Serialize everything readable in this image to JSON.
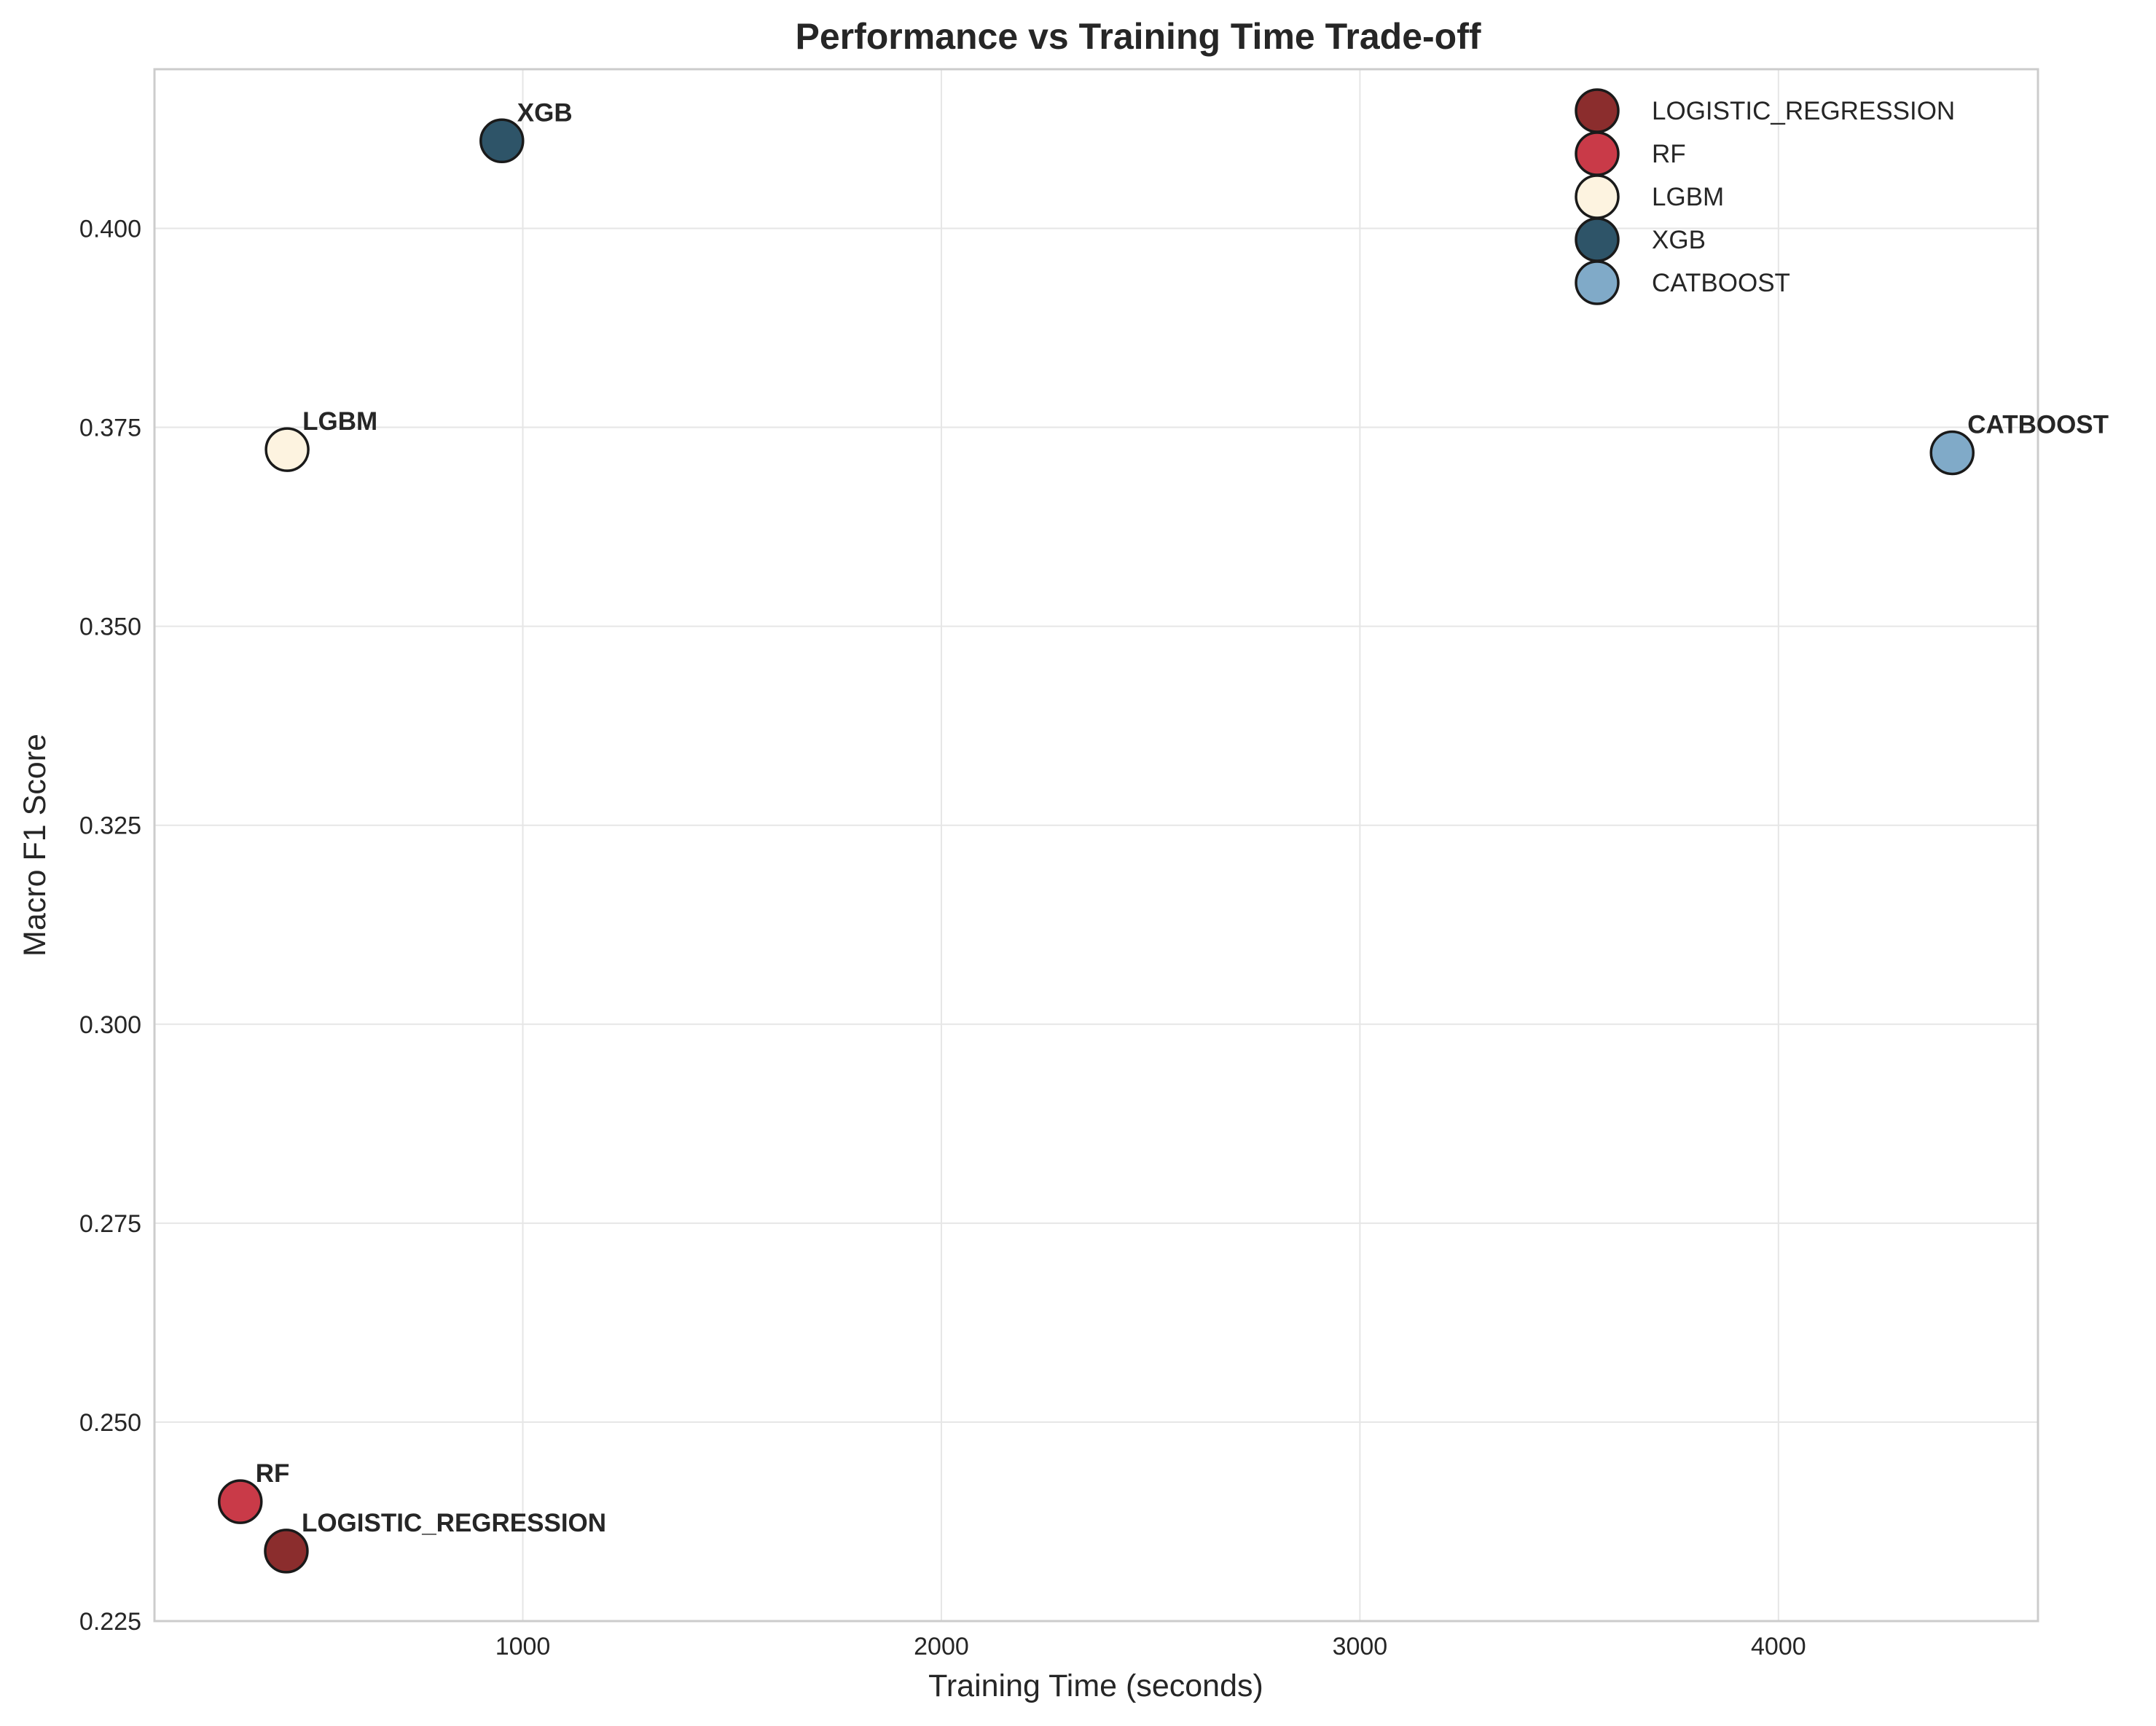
{
  "chart_data": {
    "type": "scatter",
    "title": "Performance vs Training Time Trade-off",
    "xlabel": "Training Time (seconds)",
    "ylabel": "Macro F1 Score",
    "xlim": [
      120,
      4620
    ],
    "ylim": [
      0.225,
      0.42
    ],
    "xticks": [
      1000,
      2000,
      3000,
      4000
    ],
    "yticks": [
      0.225,
      0.25,
      0.275,
      0.3,
      0.325,
      0.35,
      0.375,
      0.4
    ],
    "ytick_labels": [
      "0.225",
      "0.250",
      "0.275",
      "0.300",
      "0.325",
      "0.350",
      "0.375",
      "0.400"
    ],
    "grid": true,
    "legend_position": "top-right",
    "series": [
      {
        "name": "LOGISTIC_REGRESSION",
        "x": 435,
        "y": 0.2338,
        "color": "#8b2d2d"
      },
      {
        "name": "RF",
        "x": 325,
        "y": 0.24,
        "color": "#c93a48"
      },
      {
        "name": "LGBM",
        "x": 437,
        "y": 0.3722,
        "color": "#fdf3e0"
      },
      {
        "name": "XGB",
        "x": 950,
        "y": 0.411,
        "color": "#2e5468"
      },
      {
        "name": "CATBOOST",
        "x": 4415,
        "y": 0.3718,
        "color": "#80aac8"
      }
    ]
  }
}
